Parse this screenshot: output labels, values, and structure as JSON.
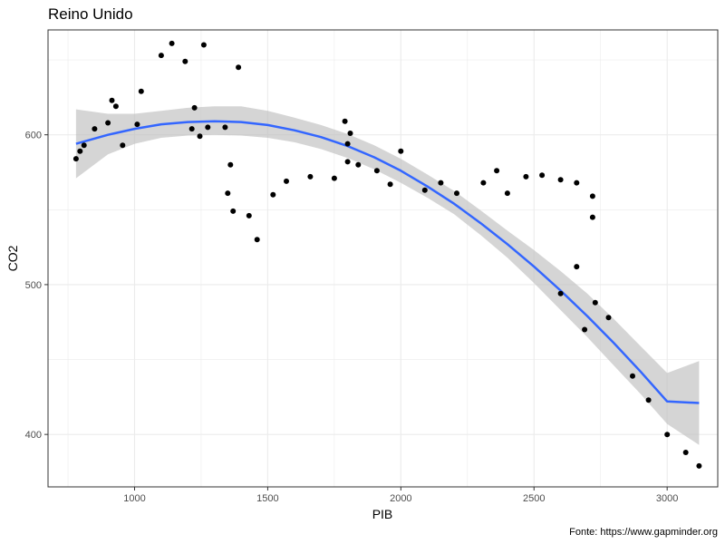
{
  "chart_data": {
    "type": "scatter",
    "title": "Reino Unido",
    "xlabel": "PIB",
    "ylabel": "CO2",
    "caption": "Fonte: https://www.gapminder.org",
    "xlim": [
      675,
      3190
    ],
    "ylim": [
      365,
      670
    ],
    "x_ticks": [
      1000,
      1500,
      2000,
      2500,
      3000
    ],
    "y_ticks": [
      400,
      500,
      600
    ],
    "grid": true,
    "colors": {
      "points": "#000000",
      "fit_line": "#3366ff",
      "ribbon": "#bfbfbf",
      "panel_border": "#333333",
      "grid_major": "#ebebeb"
    },
    "points": [
      [
        780,
        584
      ],
      [
        795,
        589
      ],
      [
        810,
        593
      ],
      [
        850,
        604
      ],
      [
        900,
        608
      ],
      [
        915,
        623
      ],
      [
        930,
        619
      ],
      [
        955,
        593
      ],
      [
        1010,
        607
      ],
      [
        1025,
        629
      ],
      [
        1100,
        653
      ],
      [
        1140,
        661
      ],
      [
        1190,
        649
      ],
      [
        1215,
        604
      ],
      [
        1225,
        618
      ],
      [
        1245,
        599
      ],
      [
        1260,
        660
      ],
      [
        1275,
        605
      ],
      [
        1340,
        605
      ],
      [
        1350,
        561
      ],
      [
        1360,
        580
      ],
      [
        1370,
        549
      ],
      [
        1390,
        645
      ],
      [
        1430,
        546
      ],
      [
        1460,
        530
      ],
      [
        1520,
        560
      ],
      [
        1570,
        569
      ],
      [
        1660,
        572
      ],
      [
        1750,
        571
      ],
      [
        1790,
        609
      ],
      [
        1800,
        594
      ],
      [
        1800,
        582
      ],
      [
        1810,
        601
      ],
      [
        1840,
        580
      ],
      [
        1910,
        576
      ],
      [
        1960,
        567
      ],
      [
        2000,
        589
      ],
      [
        2090,
        563
      ],
      [
        2150,
        568
      ],
      [
        2210,
        561
      ],
      [
        2310,
        568
      ],
      [
        2360,
        576
      ],
      [
        2400,
        561
      ],
      [
        2470,
        572
      ],
      [
        2530,
        573
      ],
      [
        2600,
        570
      ],
      [
        2600,
        494
      ],
      [
        2660,
        568
      ],
      [
        2660,
        512
      ],
      [
        2690,
        470
      ],
      [
        2720,
        559
      ],
      [
        2720,
        545
      ],
      [
        2730,
        488
      ],
      [
        2780,
        478
      ],
      [
        2870,
        439
      ],
      [
        2930,
        423
      ],
      [
        3000,
        400
      ],
      [
        3070,
        388
      ],
      [
        3120,
        379
      ]
    ],
    "fit": {
      "x": [
        780,
        900,
        1000,
        1100,
        1200,
        1300,
        1400,
        1500,
        1600,
        1700,
        1800,
        1900,
        2000,
        2100,
        2200,
        2300,
        2400,
        2500,
        2600,
        2700,
        2800,
        2900,
        3000,
        3120
      ],
      "y": [
        594,
        600,
        604,
        607,
        608.5,
        609,
        608.5,
        606.5,
        603,
        598.5,
        592.5,
        585,
        576,
        565.5,
        554,
        541,
        527,
        512,
        496,
        479,
        461,
        442,
        422,
        421
      ],
      "ymin": [
        571,
        587,
        594,
        598,
        599.5,
        600,
        599.5,
        598,
        595,
        590.5,
        584.5,
        577,
        568,
        558,
        547,
        533,
        518,
        501,
        483,
        465,
        446,
        427,
        407,
        393
      ],
      "ymax": [
        617,
        614,
        614,
        616,
        618,
        619,
        619,
        616,
        611.5,
        606.5,
        600.5,
        593,
        584,
        573.5,
        562.5,
        549.5,
        536,
        523,
        509,
        494,
        477,
        459,
        441,
        449
      ]
    }
  }
}
